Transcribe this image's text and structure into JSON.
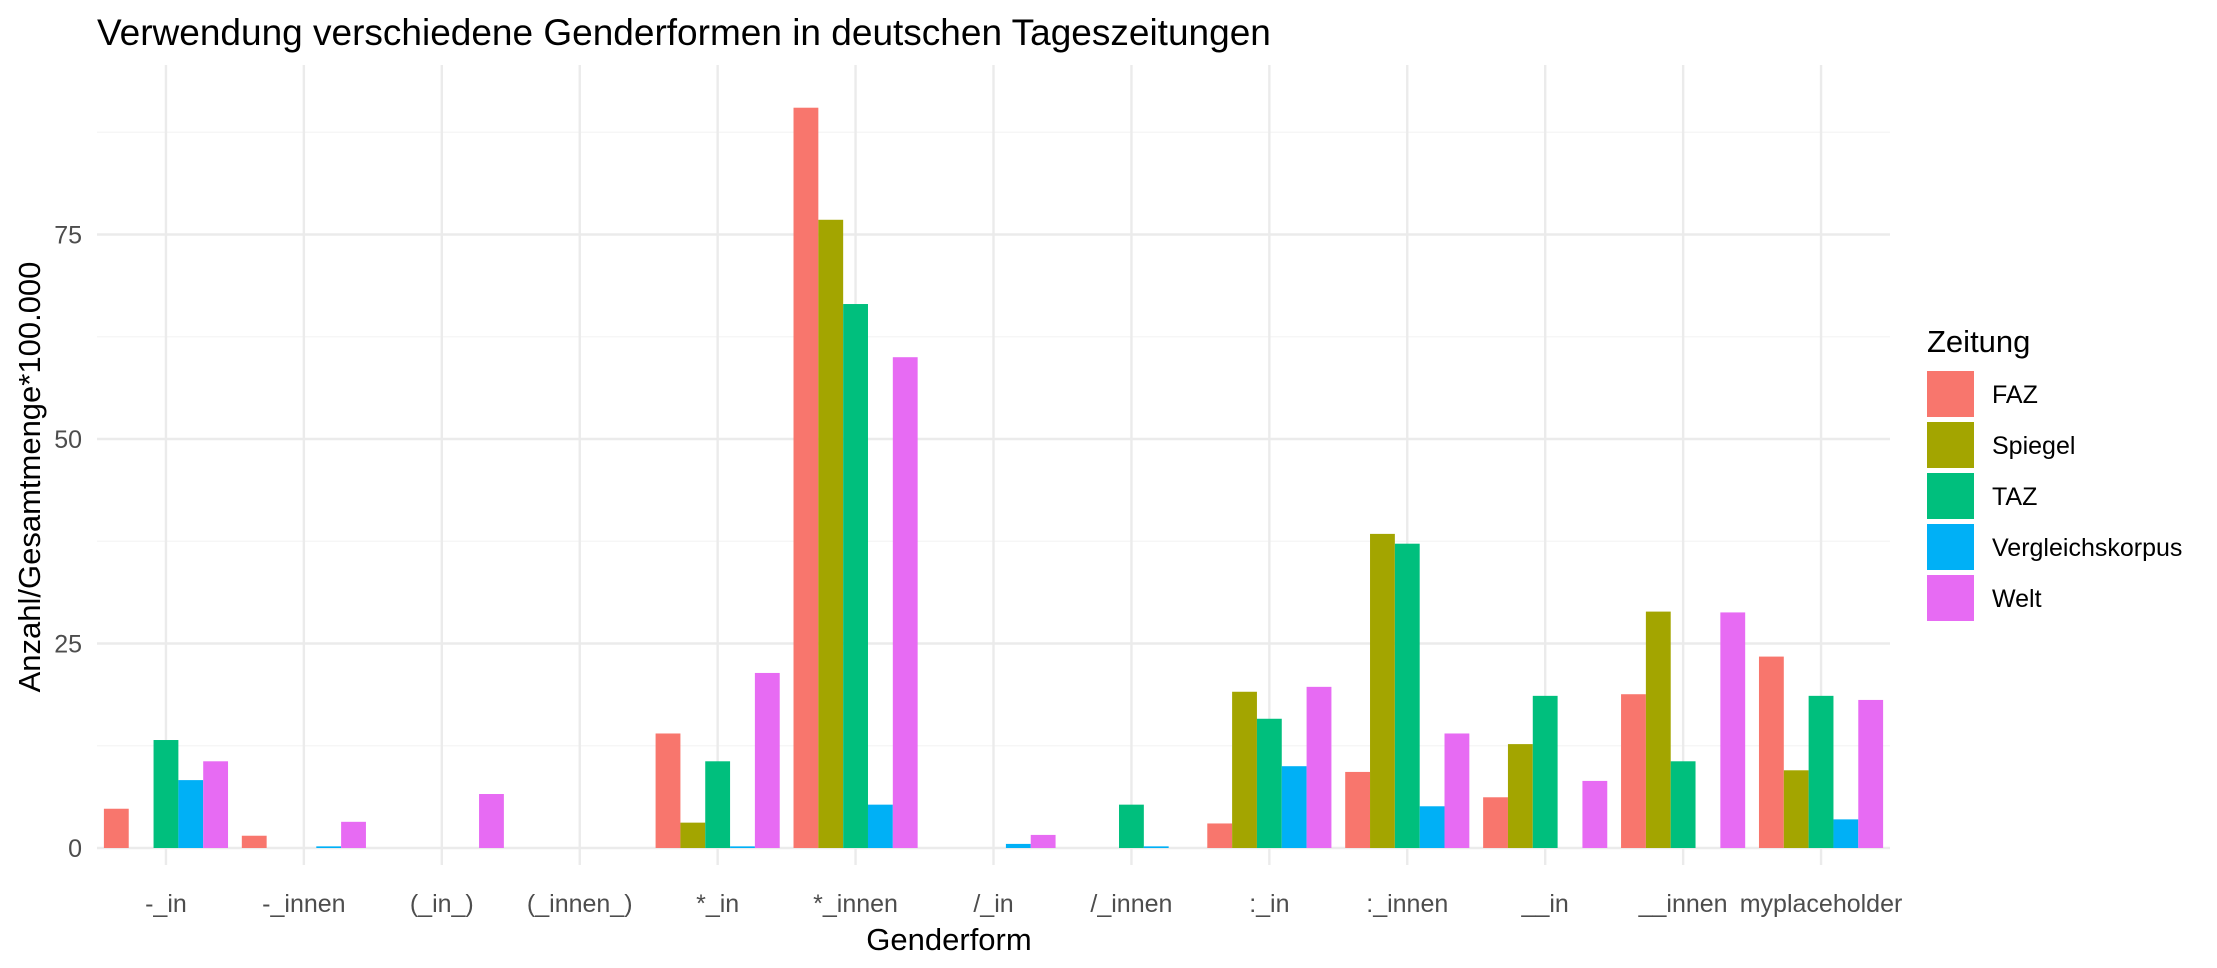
{
  "chart_data": {
    "type": "bar",
    "title": "Verwendung verschiedene Genderformen in deutschen Tageszeitungen",
    "xlabel": "Genderform",
    "ylabel": "Anzahl/Gesamtmenge*100.000",
    "categories": [
      "-_in",
      "-_innen",
      "(_in_)",
      "(_innen_)",
      "*_in",
      "*_innen",
      "/_in",
      "/_innen",
      ":_in",
      ":_innen",
      "__in",
      "__innen",
      "myplaceholder"
    ],
    "series": [
      {
        "name": "FAZ",
        "color": "#F8766D",
        "values": [
          4.8,
          1.5,
          0,
          0,
          14.0,
          90.5,
          0,
          0,
          3.0,
          9.3,
          6.2,
          18.8,
          23.4
        ]
      },
      {
        "name": "Spiegel",
        "color": "#A3A500",
        "values": [
          0,
          0,
          0,
          0,
          3.1,
          76.8,
          0,
          0,
          19.1,
          38.4,
          12.7,
          28.9,
          9.5
        ]
      },
      {
        "name": "TAZ",
        "color": "#00BF7D",
        "values": [
          13.2,
          0,
          0,
          0,
          10.6,
          66.5,
          0,
          5.3,
          15.8,
          37.2,
          18.6,
          10.6,
          18.6
        ]
      },
      {
        "name": "Vergleichskorpus",
        "color": "#00B0F6",
        "values": [
          8.3,
          0.2,
          0,
          0,
          0.2,
          5.3,
          0.5,
          0.2,
          10.0,
          5.1,
          0,
          0,
          3.5
        ]
      },
      {
        "name": "Welt",
        "color": "#E76BF3",
        "values": [
          10.6,
          3.2,
          6.6,
          0,
          21.4,
          60.0,
          1.6,
          0,
          19.7,
          14.0,
          8.2,
          28.8,
          18.1
        ]
      }
    ],
    "y_ticks": [
      "0",
      "25",
      "50",
      "75"
    ],
    "ylim": [
      -1.0,
      95.0
    ],
    "grid": true,
    "legend": {
      "title": "Zeitung",
      "position": "right"
    }
  }
}
